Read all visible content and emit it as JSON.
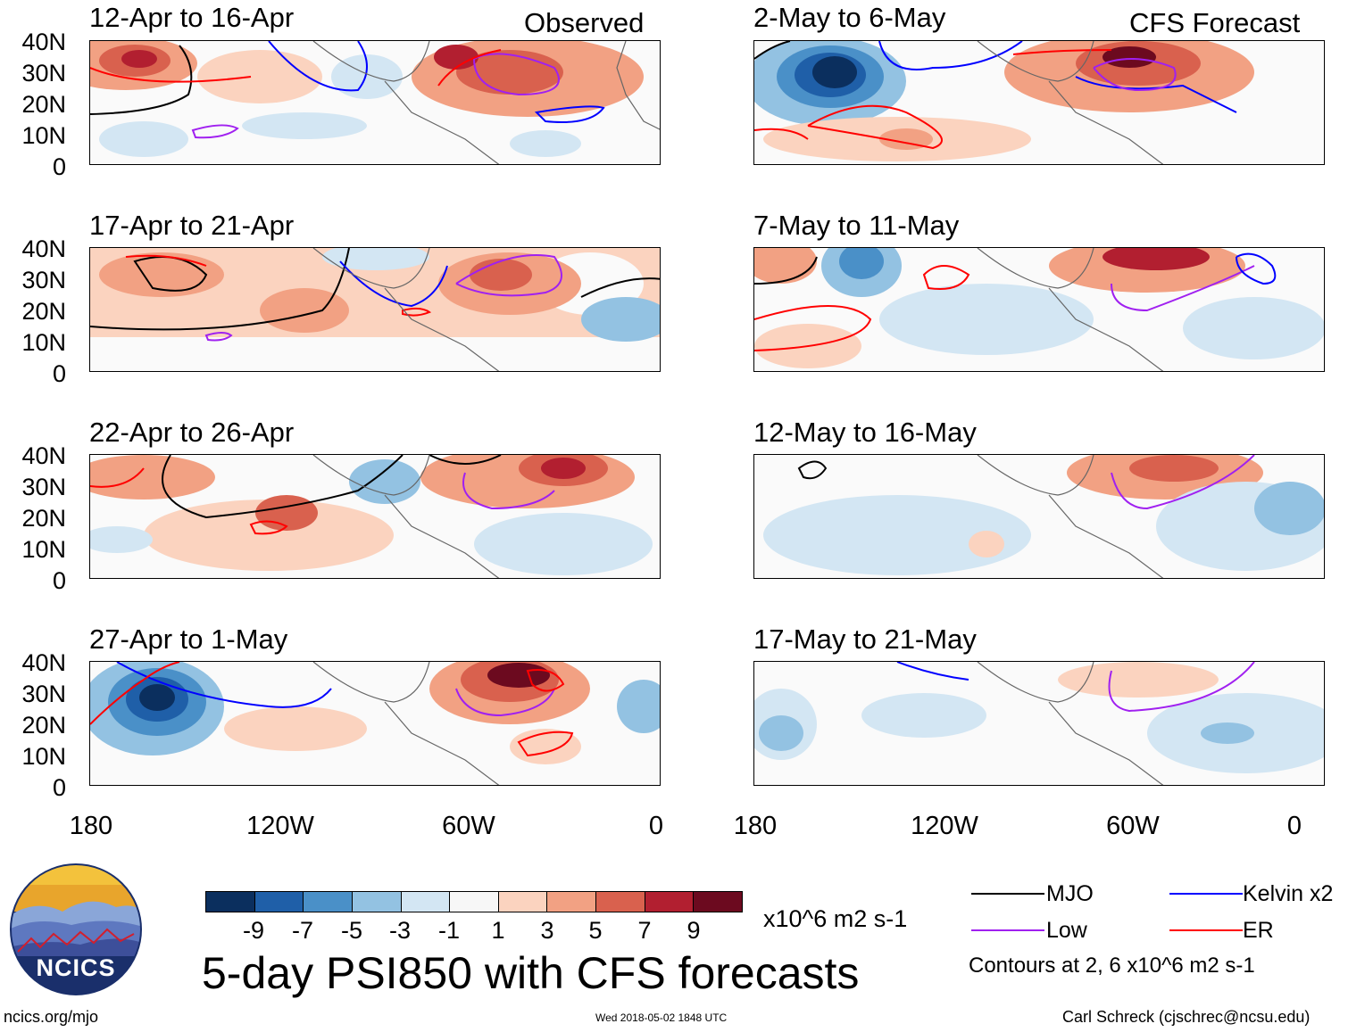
{
  "header": {
    "left": "Observed",
    "right": "CFS Forecast"
  },
  "panels": {
    "observed": [
      {
        "title": "12-Apr to 16-Apr"
      },
      {
        "title": "17-Apr to 21-Apr"
      },
      {
        "title": "22-Apr to 26-Apr"
      },
      {
        "title": "27-Apr to 1-May"
      }
    ],
    "forecast": [
      {
        "title": "2-May to 6-May"
      },
      {
        "title": "7-May to 11-May"
      },
      {
        "title": "12-May to 16-May"
      },
      {
        "title": "17-May to 21-May"
      }
    ]
  },
  "axes": {
    "lat_labels": [
      "40N",
      "30N",
      "20N",
      "10N",
      "0"
    ],
    "lon_labels": [
      "180",
      "120W",
      "60W",
      "0"
    ]
  },
  "colorbar": {
    "ticks": [
      "-9",
      "-7",
      "-5",
      "-3",
      "-1",
      "1",
      "3",
      "5",
      "7",
      "9"
    ],
    "units": "x10^6 m2 s-1",
    "colors": [
      "#0b2f5e",
      "#1f5fa8",
      "#4a90c8",
      "#93c2e2",
      "#d3e6f3",
      "#f7f7f7",
      "#fbd3bf",
      "#f2a183",
      "#d9614e",
      "#b21f30",
      "#6c0a1f"
    ]
  },
  "title": "5-day PSI850 with CFS forecasts",
  "legend": {
    "items": [
      {
        "label": "MJO",
        "color": "#000000"
      },
      {
        "label": "Kelvin x2",
        "color": "#0000ff"
      },
      {
        "label": "Low",
        "color": "#a020f0"
      },
      {
        "label": "ER",
        "color": "#ff0000"
      }
    ],
    "note": "Contours at 2, 6 x10^6 m2 s-1"
  },
  "logo": {
    "text": "NCICS"
  },
  "footer": {
    "url": "ncics.org/mjo",
    "timestamp": "Wed 2018-05-02 1848 UTC",
    "credit": "Carl Schreck (cjschrec@ncsu.edu)"
  }
}
